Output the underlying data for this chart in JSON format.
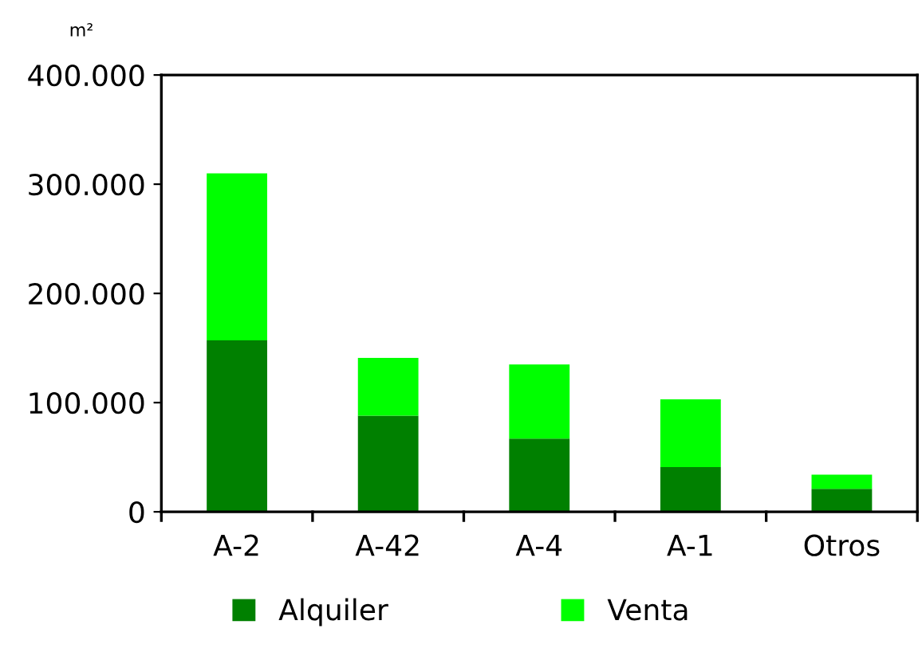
{
  "chart_data": {
    "type": "bar",
    "stacked": true,
    "ylabel": "m²",
    "categories": [
      "A-2",
      "A-42",
      "A-4",
      "A-1",
      "Otros"
    ],
    "series": [
      {
        "name": "Alquiler",
        "color": "#008000",
        "values": [
          157000,
          88000,
          67000,
          41000,
          21000
        ]
      },
      {
        "name": "Venta",
        "color": "#00ff00",
        "values": [
          153000,
          53000,
          68000,
          62000,
          13000
        ]
      }
    ],
    "ylim": [
      0,
      400000
    ],
    "yticks": [
      0,
      {
        "value": 100000,
        "label": "100.000"
      },
      {
        "value": 200000,
        "label": "200.000"
      },
      {
        "value": 300000,
        "label": "300.000"
      },
      {
        "value": 400000,
        "label": "400.000"
      }
    ],
    "grid": false,
    "legend": "bottom"
  }
}
